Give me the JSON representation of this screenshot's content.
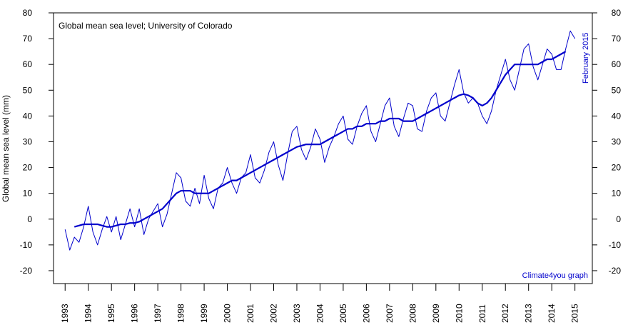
{
  "chart_data": {
    "type": "line",
    "title": "Global mean sea level; University of Colorado",
    "subtitle": "February 2015",
    "annotation": "Climate4you graph",
    "y_label": "Global mean sea level (mm)",
    "x": [
      1993.0,
      1993.2,
      1993.4,
      1993.6,
      1993.8,
      1994.0,
      1994.2,
      1994.4,
      1994.6,
      1994.8,
      1995.0,
      1995.2,
      1995.4,
      1995.6,
      1995.8,
      1996.0,
      1996.2,
      1996.4,
      1996.6,
      1996.8,
      1997.0,
      1997.2,
      1997.4,
      1997.6,
      1997.8,
      1998.0,
      1998.2,
      1998.4,
      1998.6,
      1998.8,
      1999.0,
      1999.2,
      1999.4,
      1999.6,
      1999.8,
      2000.0,
      2000.2,
      2000.4,
      2000.6,
      2000.8,
      2001.0,
      2001.2,
      2001.4,
      2001.6,
      2001.8,
      2002.0,
      2002.2,
      2002.4,
      2002.6,
      2002.8,
      2003.0,
      2003.2,
      2003.4,
      2003.6,
      2003.8,
      2004.0,
      2004.2,
      2004.4,
      2004.6,
      2004.8,
      2005.0,
      2005.2,
      2005.4,
      2005.6,
      2005.8,
      2006.0,
      2006.2,
      2006.4,
      2006.6,
      2006.8,
      2007.0,
      2007.2,
      2007.4,
      2007.6,
      2007.8,
      2008.0,
      2008.2,
      2008.4,
      2008.6,
      2008.8,
      2009.0,
      2009.2,
      2009.4,
      2009.6,
      2009.8,
      2010.0,
      2010.2,
      2010.4,
      2010.6,
      2010.8,
      2011.0,
      2011.2,
      2011.4,
      2011.6,
      2011.8,
      2012.0,
      2012.2,
      2012.4,
      2012.6,
      2012.8,
      2013.0,
      2013.2,
      2013.4,
      2013.6,
      2013.8,
      2014.0,
      2014.2,
      2014.4,
      2014.6,
      2014.8,
      2015.0
    ],
    "series": [
      {
        "color": "#0000cc",
        "values": [
          -4,
          -12,
          -7,
          -9,
          -3,
          5,
          -5,
          -10,
          -4,
          1,
          -5,
          1,
          -8,
          -2,
          4,
          -3,
          4,
          -6,
          0,
          3,
          6,
          -3,
          2,
          10,
          18,
          16,
          7,
          5,
          12,
          6,
          17,
          8,
          4,
          12,
          14,
          20,
          14,
          10,
          16,
          18,
          25,
          16,
          14,
          19,
          26,
          30,
          21,
          15,
          25,
          34,
          36,
          27,
          23,
          28,
          35,
          31,
          22,
          28,
          32,
          37,
          40,
          31,
          29,
          36,
          41,
          44,
          34,
          30,
          37,
          44,
          47,
          36,
          32,
          39,
          45,
          44,
          35,
          34,
          42,
          47,
          49,
          40,
          38,
          45,
          52,
          58,
          49,
          45,
          47,
          45,
          40,
          37,
          42,
          50,
          56,
          62,
          54,
          50,
          58,
          66,
          68,
          59,
          54,
          60,
          66,
          64,
          58,
          58,
          66,
          73,
          70
        ]
      },
      {
        "color": "#0000cc",
        "values": [
          null,
          null,
          -3,
          -2.5,
          -2,
          -2,
          -2,
          -2,
          -2.5,
          -3,
          -3,
          -2.5,
          -2,
          -2,
          -1.5,
          -1.5,
          -1,
          0,
          1,
          2,
          3,
          4,
          6,
          8,
          10,
          11,
          11,
          11,
          10,
          10,
          10,
          10,
          11,
          12,
          13,
          14,
          15,
          15,
          16,
          17,
          18,
          19,
          20,
          21,
          22,
          23,
          24,
          25,
          26,
          27,
          28,
          28.5,
          29,
          29,
          29,
          29,
          30,
          31,
          32,
          33,
          34,
          35,
          35,
          36,
          36,
          37,
          37,
          37,
          38,
          38,
          39,
          39,
          39,
          38,
          38,
          38,
          39,
          40,
          41,
          42,
          43,
          44,
          45,
          46,
          47,
          48,
          48.5,
          48,
          47,
          45,
          44,
          45,
          47,
          50,
          53,
          56,
          58,
          60,
          60,
          60,
          60,
          60,
          60,
          61,
          62,
          62,
          63,
          64,
          65,
          null,
          null
        ]
      }
    ],
    "xlim": [
      1992.5,
      2015.75
    ],
    "xticks": [
      1993,
      1994,
      1995,
      1996,
      1997,
      1998,
      1999,
      2000,
      2001,
      2002,
      2003,
      2004,
      2005,
      2006,
      2007,
      2008,
      2009,
      2010,
      2011,
      2012,
      2013,
      2014,
      2015
    ],
    "ylim": [
      -25,
      80
    ],
    "yticks": [
      -20,
      -10,
      0,
      10,
      20,
      30,
      40,
      50,
      60,
      70,
      80
    ]
  }
}
